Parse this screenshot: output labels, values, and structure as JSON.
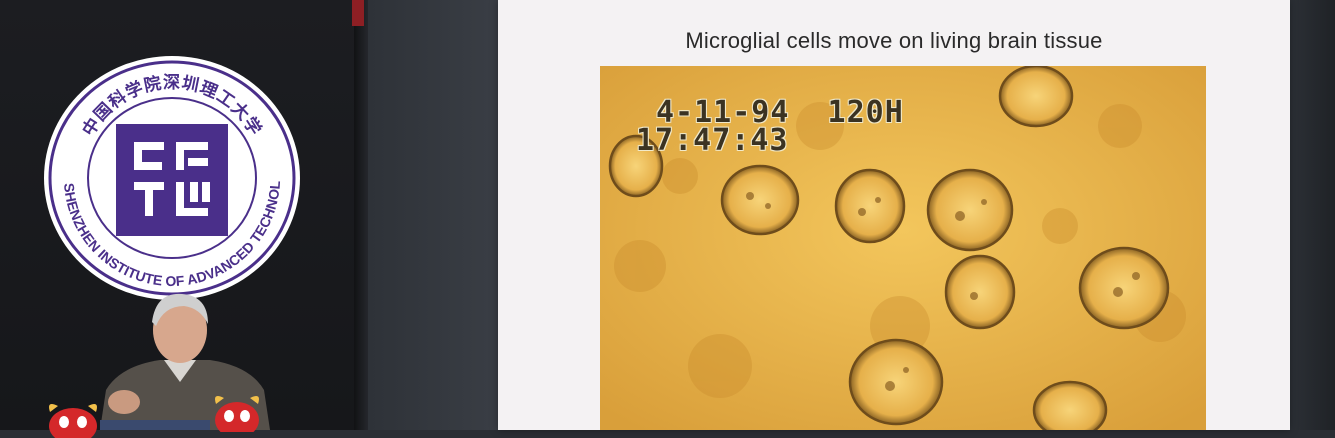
{
  "logo": {
    "top_text": "中国科学院深圳理工大学",
    "bottom_text": "CAS SHENZHEN INSTITUTE OF ADVANCED TECHNOLOGY",
    "emblem_color": "#4a2f8a"
  },
  "slide": {
    "title": "Microglial cells move on living brain tissue",
    "video": {
      "timestamp_date": "4-11-94  120H",
      "timestamp_time": "17:47:43"
    }
  },
  "colors": {
    "background": "#2a2d33",
    "slide_bg": "#f4f2f3",
    "video_tone": "#e7b24a"
  }
}
